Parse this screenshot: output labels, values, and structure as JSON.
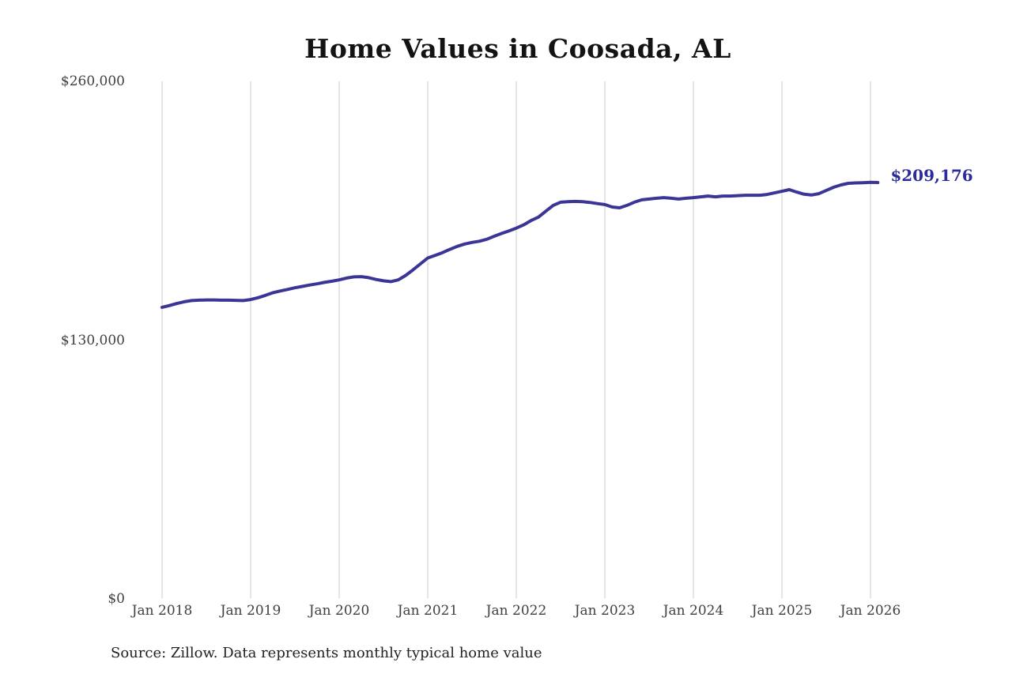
{
  "page": {
    "background": "#ffffff"
  },
  "chart_data": {
    "type": "line",
    "title": "Home Values in Coosada, AL",
    "source_note": "Source: Zillow. Data represents monthly typical home value",
    "legend": "none",
    "grid": "vertical-only",
    "frequency": "monthly",
    "x_start_month": "Jan 2018",
    "x_end_month": "Feb 2026",
    "x_tick_labels": [
      "Jan 2018",
      "Jan 2019",
      "Jan 2020",
      "Jan 2021",
      "Jan 2022",
      "Jan 2023",
      "Jan 2024",
      "Jan 2025",
      "Jan 2026"
    ],
    "y_tick_labels": [
      "$0",
      "$130,000",
      "$260,000"
    ],
    "y_tick_values": [
      0,
      130000,
      260000
    ],
    "ylim": [
      0,
      260000
    ],
    "end_label": "$209,176",
    "final_value": 209176,
    "line_color": "#3b3596",
    "end_label_color": "#2b2b9c",
    "gridline_color": "#cccccc",
    "axis_label_color": "#3f3f3f",
    "series": [
      {
        "name": "Typical home value",
        "values": [
          146500,
          147400,
          148400,
          149300,
          149900,
          150100,
          150200,
          150200,
          150100,
          150100,
          150000,
          149900,
          150400,
          151300,
          152500,
          153800,
          154700,
          155500,
          156300,
          157000,
          157700,
          158300,
          159000,
          159600,
          160300,
          161200,
          161800,
          161900,
          161400,
          160500,
          159800,
          159400,
          160300,
          162500,
          165300,
          168300,
          171300,
          172600,
          174000,
          175600,
          177100,
          178300,
          179100,
          179700,
          180700,
          182200,
          183600,
          184900,
          186300,
          187900,
          190100,
          191800,
          194800,
          197700,
          199300,
          199600,
          199700,
          199600,
          199200,
          198600,
          198100,
          196900,
          196500,
          197700,
          199300,
          200500,
          200900,
          201300,
          201600,
          201300,
          200900,
          201300,
          201600,
          202000,
          202400,
          202000,
          202400,
          202400,
          202600,
          202800,
          202800,
          202800,
          203200,
          204000,
          204800,
          205600,
          204400,
          203300,
          202900,
          203600,
          205200,
          206800,
          208000,
          208800,
          209000,
          209100,
          209300,
          209176
        ]
      }
    ]
  }
}
